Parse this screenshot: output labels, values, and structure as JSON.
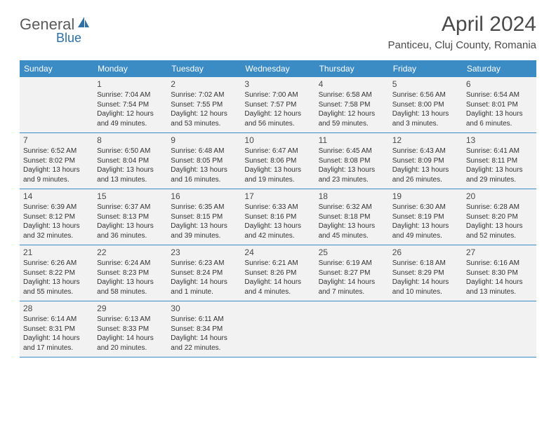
{
  "logo": {
    "text1": "General",
    "text2": "Blue"
  },
  "header": {
    "month_title": "April 2024",
    "location": "Panticeu, Cluj County, Romania"
  },
  "colors": {
    "header_bg": "#3b8bc4",
    "header_fg": "#ffffff",
    "cell_bg": "#f2f2f2",
    "border": "#3b8bc4",
    "logo_gray": "#5a5a5a",
    "logo_blue": "#2f6fa3"
  },
  "weekdays": [
    "Sunday",
    "Monday",
    "Tuesday",
    "Wednesday",
    "Thursday",
    "Friday",
    "Saturday"
  ],
  "weeks": [
    [
      null,
      {
        "n": "1",
        "sr": "Sunrise: 7:04 AM",
        "ss": "Sunset: 7:54 PM",
        "dl": "Daylight: 12 hours and 49 minutes."
      },
      {
        "n": "2",
        "sr": "Sunrise: 7:02 AM",
        "ss": "Sunset: 7:55 PM",
        "dl": "Daylight: 12 hours and 53 minutes."
      },
      {
        "n": "3",
        "sr": "Sunrise: 7:00 AM",
        "ss": "Sunset: 7:57 PM",
        "dl": "Daylight: 12 hours and 56 minutes."
      },
      {
        "n": "4",
        "sr": "Sunrise: 6:58 AM",
        "ss": "Sunset: 7:58 PM",
        "dl": "Daylight: 12 hours and 59 minutes."
      },
      {
        "n": "5",
        "sr": "Sunrise: 6:56 AM",
        "ss": "Sunset: 8:00 PM",
        "dl": "Daylight: 13 hours and 3 minutes."
      },
      {
        "n": "6",
        "sr": "Sunrise: 6:54 AM",
        "ss": "Sunset: 8:01 PM",
        "dl": "Daylight: 13 hours and 6 minutes."
      }
    ],
    [
      {
        "n": "7",
        "sr": "Sunrise: 6:52 AM",
        "ss": "Sunset: 8:02 PM",
        "dl": "Daylight: 13 hours and 9 minutes."
      },
      {
        "n": "8",
        "sr": "Sunrise: 6:50 AM",
        "ss": "Sunset: 8:04 PM",
        "dl": "Daylight: 13 hours and 13 minutes."
      },
      {
        "n": "9",
        "sr": "Sunrise: 6:48 AM",
        "ss": "Sunset: 8:05 PM",
        "dl": "Daylight: 13 hours and 16 minutes."
      },
      {
        "n": "10",
        "sr": "Sunrise: 6:47 AM",
        "ss": "Sunset: 8:06 PM",
        "dl": "Daylight: 13 hours and 19 minutes."
      },
      {
        "n": "11",
        "sr": "Sunrise: 6:45 AM",
        "ss": "Sunset: 8:08 PM",
        "dl": "Daylight: 13 hours and 23 minutes."
      },
      {
        "n": "12",
        "sr": "Sunrise: 6:43 AM",
        "ss": "Sunset: 8:09 PM",
        "dl": "Daylight: 13 hours and 26 minutes."
      },
      {
        "n": "13",
        "sr": "Sunrise: 6:41 AM",
        "ss": "Sunset: 8:11 PM",
        "dl": "Daylight: 13 hours and 29 minutes."
      }
    ],
    [
      {
        "n": "14",
        "sr": "Sunrise: 6:39 AM",
        "ss": "Sunset: 8:12 PM",
        "dl": "Daylight: 13 hours and 32 minutes."
      },
      {
        "n": "15",
        "sr": "Sunrise: 6:37 AM",
        "ss": "Sunset: 8:13 PM",
        "dl": "Daylight: 13 hours and 36 minutes."
      },
      {
        "n": "16",
        "sr": "Sunrise: 6:35 AM",
        "ss": "Sunset: 8:15 PM",
        "dl": "Daylight: 13 hours and 39 minutes."
      },
      {
        "n": "17",
        "sr": "Sunrise: 6:33 AM",
        "ss": "Sunset: 8:16 PM",
        "dl": "Daylight: 13 hours and 42 minutes."
      },
      {
        "n": "18",
        "sr": "Sunrise: 6:32 AM",
        "ss": "Sunset: 8:18 PM",
        "dl": "Daylight: 13 hours and 45 minutes."
      },
      {
        "n": "19",
        "sr": "Sunrise: 6:30 AM",
        "ss": "Sunset: 8:19 PM",
        "dl": "Daylight: 13 hours and 49 minutes."
      },
      {
        "n": "20",
        "sr": "Sunrise: 6:28 AM",
        "ss": "Sunset: 8:20 PM",
        "dl": "Daylight: 13 hours and 52 minutes."
      }
    ],
    [
      {
        "n": "21",
        "sr": "Sunrise: 6:26 AM",
        "ss": "Sunset: 8:22 PM",
        "dl": "Daylight: 13 hours and 55 minutes."
      },
      {
        "n": "22",
        "sr": "Sunrise: 6:24 AM",
        "ss": "Sunset: 8:23 PM",
        "dl": "Daylight: 13 hours and 58 minutes."
      },
      {
        "n": "23",
        "sr": "Sunrise: 6:23 AM",
        "ss": "Sunset: 8:24 PM",
        "dl": "Daylight: 14 hours and 1 minute."
      },
      {
        "n": "24",
        "sr": "Sunrise: 6:21 AM",
        "ss": "Sunset: 8:26 PM",
        "dl": "Daylight: 14 hours and 4 minutes."
      },
      {
        "n": "25",
        "sr": "Sunrise: 6:19 AM",
        "ss": "Sunset: 8:27 PM",
        "dl": "Daylight: 14 hours and 7 minutes."
      },
      {
        "n": "26",
        "sr": "Sunrise: 6:18 AM",
        "ss": "Sunset: 8:29 PM",
        "dl": "Daylight: 14 hours and 10 minutes."
      },
      {
        "n": "27",
        "sr": "Sunrise: 6:16 AM",
        "ss": "Sunset: 8:30 PM",
        "dl": "Daylight: 14 hours and 13 minutes."
      }
    ],
    [
      {
        "n": "28",
        "sr": "Sunrise: 6:14 AM",
        "ss": "Sunset: 8:31 PM",
        "dl": "Daylight: 14 hours and 17 minutes."
      },
      {
        "n": "29",
        "sr": "Sunrise: 6:13 AM",
        "ss": "Sunset: 8:33 PM",
        "dl": "Daylight: 14 hours and 20 minutes."
      },
      {
        "n": "30",
        "sr": "Sunrise: 6:11 AM",
        "ss": "Sunset: 8:34 PM",
        "dl": "Daylight: 14 hours and 22 minutes."
      },
      null,
      null,
      null,
      null
    ]
  ]
}
